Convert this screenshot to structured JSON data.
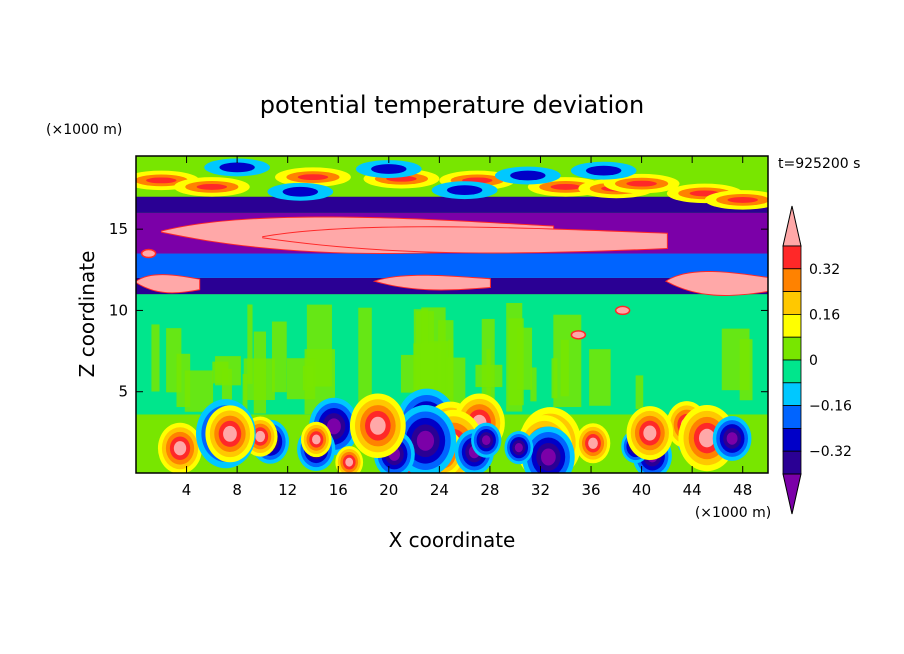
{
  "chart_data": {
    "type": "heatmap",
    "title": "potential temperature deviation",
    "xlabel": "X coordinate",
    "ylabel": "Z coordinate",
    "x_unit": "(×1000 m)",
    "y_unit": "(×1000 m)",
    "time_label": "t=925200 s",
    "xlim": [
      0,
      50
    ],
    "ylim": [
      0,
      19.5
    ],
    "x_ticks": [
      4,
      8,
      12,
      16,
      20,
      24,
      28,
      32,
      36,
      40,
      44,
      48
    ],
    "y_ticks": [
      5,
      10,
      15
    ],
    "colorbar": {
      "ticks": [
        "0.32",
        "0.16",
        "0",
        "−0.16",
        "−0.32"
      ],
      "levels": [
        -0.48,
        -0.4,
        -0.32,
        -0.24,
        -0.16,
        -0.08,
        0,
        0.08,
        0.16,
        0.24,
        0.32,
        0.4,
        0.48
      ],
      "colors": [
        "#7b00a8",
        "#2a0094",
        "#0000c8",
        "#0064ff",
        "#00c8ff",
        "#00e68c",
        "#78e600",
        "#ffff00",
        "#ffc800",
        "#ff8200",
        "#ff2828",
        "#ffa8a8"
      ]
    },
    "bands": [
      {
        "z": [
          0,
          0.4
        ],
        "value": 0.04
      },
      {
        "z": [
          0.4,
          3.6
        ],
        "value": 0.0
      },
      {
        "z": [
          3.6,
          11
        ],
        "value": -0.04
      },
      {
        "z": [
          11,
          12
        ],
        "value": -0.36
      },
      {
        "z": [
          12,
          13.5
        ],
        "value": -0.2
      },
      {
        "z": [
          13.5,
          16
        ],
        "value": -0.44
      },
      {
        "z": [
          16,
          17
        ],
        "value": -0.36
      },
      {
        "z": [
          17,
          19.5
        ],
        "value": 0.04
      }
    ],
    "features": [
      {
        "type": "positive_layer",
        "x": [
          2,
          33
        ],
        "z": [
          13.3,
          16.4
        ],
        "value": 0.5
      },
      {
        "type": "positive_layer",
        "x": [
          10,
          42
        ],
        "z": [
          13.4,
          15.6
        ],
        "value": 0.5
      },
      {
        "type": "positive_layer",
        "x": [
          19,
          28
        ],
        "z": [
          11.2,
          12.4
        ],
        "value": 0.5
      },
      {
        "type": "positive_layer",
        "x": [
          42,
          50
        ],
        "z": [
          10.8,
          12.8
        ],
        "value": 0.5
      },
      {
        "type": "positive_layer",
        "x": [
          0,
          5
        ],
        "z": [
          11.0,
          12.5
        ],
        "value": 0.5
      },
      {
        "type": "warm_band_top",
        "x": [
          0,
          50
        ],
        "z": [
          16.5,
          18.8
        ],
        "value": 0.2
      },
      {
        "type": "eddies",
        "x": [
          0,
          50
        ],
        "z": [
          0.2,
          3.5
        ],
        "value": 0.3
      }
    ]
  }
}
